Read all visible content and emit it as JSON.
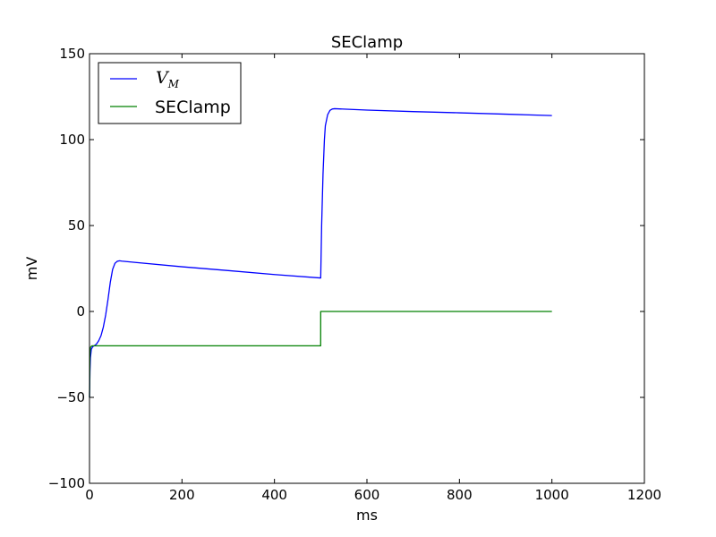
{
  "chart_data": {
    "type": "line",
    "title": "SEClamp",
    "xlabel": "ms",
    "ylabel": "mV",
    "xlim": [
      0,
      1200
    ],
    "ylim": [
      -100,
      150
    ],
    "xticks": [
      0,
      200,
      400,
      600,
      800,
      1000,
      1200
    ],
    "xtick_labels": [
      "0",
      "200",
      "400",
      "600",
      "800",
      "1000",
      "1200"
    ],
    "yticks": [
      -100,
      -50,
      0,
      50,
      100,
      150
    ],
    "ytick_labels": [
      "−100",
      "−50",
      "0",
      "50",
      "100",
      "150"
    ],
    "grid": false,
    "legend_position": "top-left",
    "series": [
      {
        "name": "V_M",
        "legend_main": "V",
        "legend_sub": "M",
        "color": "#0000ff",
        "x": [
          0,
          1,
          2,
          4,
          7,
          10,
          15,
          20,
          25,
          30,
          35,
          40,
          45,
          50,
          55,
          60,
          65,
          70,
          100,
          200,
          300,
          400,
          499,
          500,
          502,
          505,
          508,
          510,
          515,
          520,
          525,
          530,
          600,
          700,
          800,
          900,
          1000
        ],
        "y": [
          -50,
          -35,
          -27,
          -22,
          -20.5,
          -20,
          -19,
          -17,
          -14,
          -9,
          -2,
          7,
          17,
          24.5,
          28,
          29.2,
          29.5,
          29.3,
          28.5,
          26,
          23.8,
          21.5,
          19.5,
          19.5,
          50,
          80,
          100,
          108,
          114.5,
          117,
          117.8,
          118,
          117.2,
          116.3,
          115.6,
          114.8,
          114
        ]
      },
      {
        "name": "SEClamp",
        "color": "#008000",
        "x": [
          0,
          0.5,
          1,
          2,
          5,
          10,
          499.9,
          500,
          1000
        ],
        "y": [
          -50,
          -35,
          -25,
          -21,
          -20,
          -20,
          -20,
          0,
          0
        ]
      }
    ]
  }
}
